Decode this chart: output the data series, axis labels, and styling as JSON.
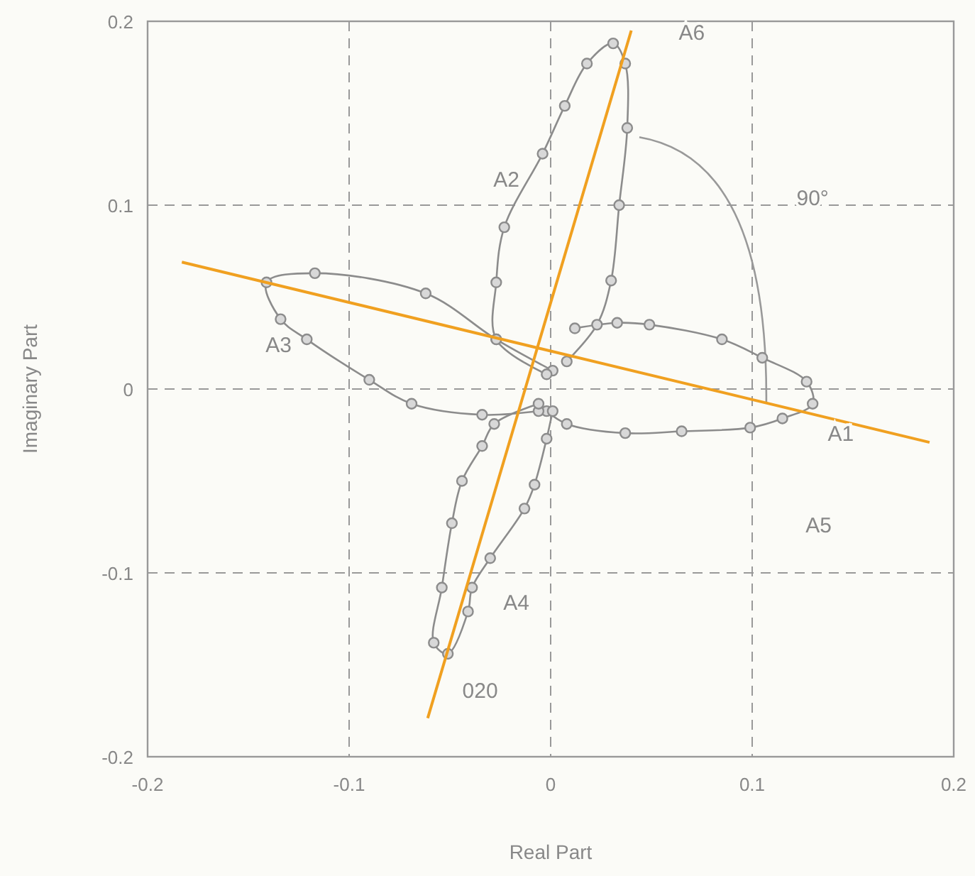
{
  "chart_data": {
    "type": "line",
    "xlabel": "Real Part",
    "ylabel": "Imaginary Part",
    "xlim": [
      -0.2,
      0.2
    ],
    "ylim": [
      -0.2,
      0.2
    ],
    "xticks": [
      -0.2,
      -0.1,
      0,
      0.1,
      0.2
    ],
    "yticks": [
      -0.2,
      -0.1,
      0,
      0.1,
      0.2
    ],
    "grid": true,
    "marker": "circle",
    "series": [
      {
        "color": "#8c8c8c",
        "x": [
          0.012,
          0.033,
          0.049,
          0.085,
          0.105,
          0.127,
          0.13,
          0.115,
          0.099,
          0.065,
          0.037,
          0.008,
          -0.002
        ],
        "values": [
          0.033,
          0.036,
          0.035,
          0.027,
          0.017,
          0.004,
          -0.008,
          -0.016,
          -0.021,
          -0.023,
          -0.024,
          -0.019,
          -0.012
        ]
      },
      {
        "color": "#8c8c8c",
        "x": [
          0.001,
          -0.027,
          -0.062,
          -0.117,
          -0.141,
          -0.134,
          -0.121,
          -0.09,
          -0.069,
          -0.034,
          -0.006
        ],
        "values": [
          0.01,
          0.027,
          0.052,
          0.063,
          0.058,
          0.038,
          0.027,
          0.005,
          -0.008,
          -0.014,
          -0.012
        ]
      },
      {
        "color": "#8c8c8c",
        "x": [
          -0.002,
          -0.027,
          -0.027,
          -0.023,
          -0.004,
          0.007,
          0.018,
          0.031,
          0.037,
          0.038,
          0.034,
          0.03,
          0.023,
          0.008
        ],
        "values": [
          0.008,
          0.027,
          0.058,
          0.088,
          0.128,
          0.154,
          0.177,
          0.188,
          0.177,
          0.142,
          0.1,
          0.059,
          0.035,
          0.015
        ]
      },
      {
        "color": "#8c8c8c",
        "x": [
          -0.006,
          -0.028,
          -0.034,
          -0.044,
          -0.049,
          -0.054,
          -0.058,
          -0.051,
          -0.041,
          -0.039,
          -0.03,
          -0.013,
          -0.008,
          -0.002,
          0.001
        ],
        "values": [
          -0.008,
          -0.019,
          -0.031,
          -0.05,
          -0.073,
          -0.108,
          -0.138,
          -0.144,
          -0.121,
          -0.108,
          -0.092,
          -0.065,
          -0.052,
          -0.027,
          -0.012
        ]
      },
      {
        "color": "#f0a020",
        "marker": "none",
        "x": [
          -0.183,
          0.188
        ],
        "values": [
          0.069,
          -0.029
        ]
      },
      {
        "color": "#f0a020",
        "marker": "none",
        "x": [
          -0.061,
          0.04
        ],
        "values": [
          -0.179,
          0.195
        ]
      }
    ],
    "annotations": [
      "A1",
      "A2",
      "A3",
      "A4",
      "A5",
      "A6",
      "90°",
      "020"
    ]
  }
}
